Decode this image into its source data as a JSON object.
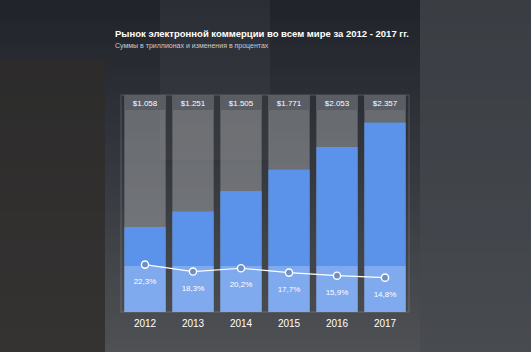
{
  "chart_data": {
    "type": "bar",
    "title": "Рынок электронной коммерции во всем мире за 2012 - 2017 гг.",
    "subtitle": "Суммы в триллионах и изменения в процентах",
    "categories": [
      "2012",
      "2013",
      "2014",
      "2015",
      "2016",
      "2017"
    ],
    "ylim": [
      0,
      2.7
    ],
    "y2lim": [
      -5,
      120
    ],
    "grid": false,
    "tick_labels": false,
    "data_labels": true,
    "series": [
      {
        "type": "bar",
        "color": "#5b93ea",
        "values": [
          1.058,
          1.251,
          1.505,
          1.771,
          2.053,
          2.357
        ],
        "value_labels": [
          "$1.058",
          "$1.251",
          "$1.505",
          "$1.771",
          "$2.053",
          "$2.357"
        ]
      },
      {
        "type": "line",
        "axis": "y2",
        "color": "#ffffff",
        "marker": "circle",
        "values": [
          22.3,
          18.3,
          20.2,
          17.7,
          15.9,
          14.8
        ],
        "value_labels": [
          "22,3%",
          "18,3%",
          "20,2%",
          "17,7%",
          "15,9%",
          "14,8%"
        ]
      }
    ]
  }
}
